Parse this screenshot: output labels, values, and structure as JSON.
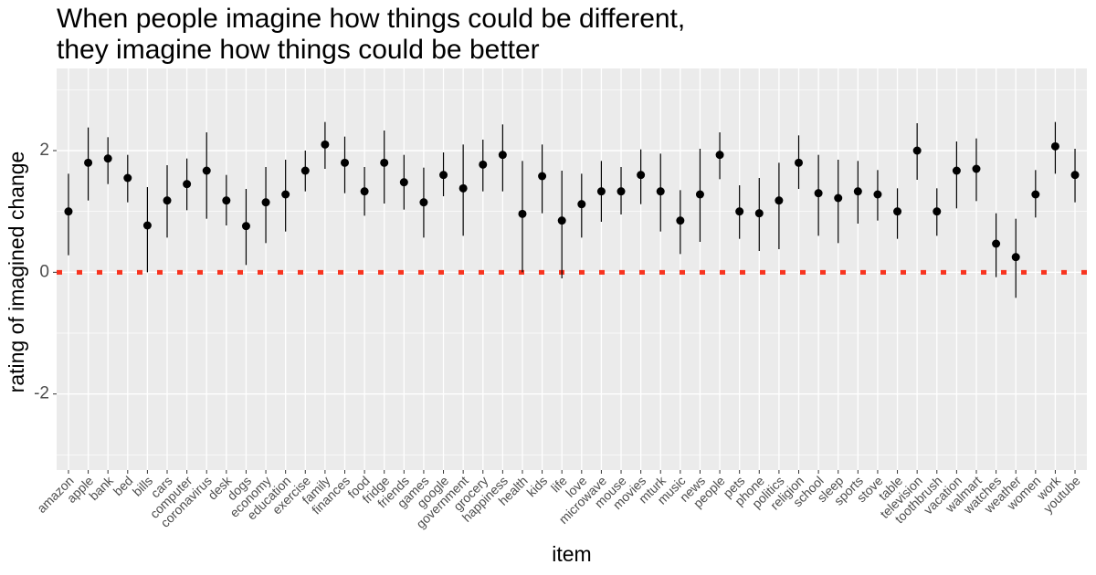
{
  "chart_data": {
    "type": "pointrange",
    "title": [
      "When people imagine how things could be different,",
      "they imagine how things could be better"
    ],
    "x_label": "item",
    "y_label": "rating of imagined change",
    "categories": [
      "amazon",
      "apple",
      "bank",
      "bed",
      "bills",
      "cars",
      "computer",
      "coronavirus",
      "desk",
      "dogs",
      "economy",
      "education",
      "exercise",
      "family",
      "finances",
      "food",
      "fridge",
      "friends",
      "games",
      "google",
      "government",
      "grocery",
      "happiness",
      "health",
      "kids",
      "life",
      "love",
      "microwave",
      "mouse",
      "movies",
      "mturk",
      "music",
      "news",
      "people",
      "pets",
      "phone",
      "politics",
      "religion",
      "school",
      "sleep",
      "sports",
      "stove",
      "table",
      "television",
      "toothbrush",
      "vacation",
      "walmart",
      "watches",
      "weather",
      "women",
      "work",
      "youtube"
    ],
    "values": [
      1.0,
      1.8,
      1.87,
      1.55,
      0.77,
      1.18,
      1.45,
      1.67,
      1.18,
      0.76,
      1.15,
      1.28,
      1.67,
      2.1,
      1.8,
      1.33,
      1.8,
      1.48,
      1.15,
      1.6,
      1.38,
      1.77,
      1.93,
      0.96,
      1.58,
      0.85,
      1.12,
      1.33,
      1.33,
      1.6,
      1.33,
      0.85,
      1.28,
      1.93,
      1.0,
      0.97,
      1.18,
      1.8,
      1.3,
      1.22,
      1.33,
      1.28,
      1.0,
      2.0,
      1.0,
      1.67,
      1.7,
      0.47,
      0.25,
      1.28,
      2.07,
      1.6
    ],
    "lower": [
      0.28,
      1.18,
      1.45,
      1.15,
      0.0,
      0.57,
      1.02,
      0.88,
      0.77,
      0.12,
      0.48,
      0.67,
      1.33,
      1.7,
      1.3,
      0.93,
      1.13,
      1.03,
      0.57,
      1.25,
      0.6,
      1.33,
      1.33,
      0.0,
      0.97,
      -0.1,
      0.57,
      0.83,
      0.95,
      1.12,
      0.67,
      0.3,
      0.5,
      1.53,
      0.55,
      0.35,
      0.38,
      1.37,
      0.6,
      0.48,
      0.8,
      0.85,
      0.55,
      1.52,
      0.6,
      1.05,
      1.17,
      -0.08,
      -0.42,
      0.9,
      1.62,
      1.15
    ],
    "upper": [
      1.62,
      2.38,
      2.22,
      1.93,
      1.4,
      1.76,
      1.87,
      2.3,
      1.6,
      1.37,
      1.73,
      1.85,
      2.0,
      2.47,
      2.23,
      1.73,
      2.33,
      1.93,
      1.72,
      1.97,
      2.1,
      2.18,
      2.43,
      1.83,
      2.1,
      1.67,
      1.62,
      1.83,
      1.73,
      2.02,
      1.95,
      1.35,
      2.03,
      2.3,
      1.43,
      1.55,
      1.8,
      2.25,
      1.93,
      1.85,
      1.83,
      1.68,
      1.38,
      2.45,
      1.38,
      2.15,
      2.2,
      0.97,
      0.88,
      1.68,
      2.47,
      2.03
    ],
    "color": "#000000",
    "ylim": [
      -3.25,
      3.35
    ],
    "yticks": [
      -2,
      0,
      2
    ],
    "minor_grid": [
      -3,
      -1,
      1,
      3
    ],
    "grid": true,
    "reference_line": {
      "value": 0,
      "color": "#f8331f"
    }
  }
}
